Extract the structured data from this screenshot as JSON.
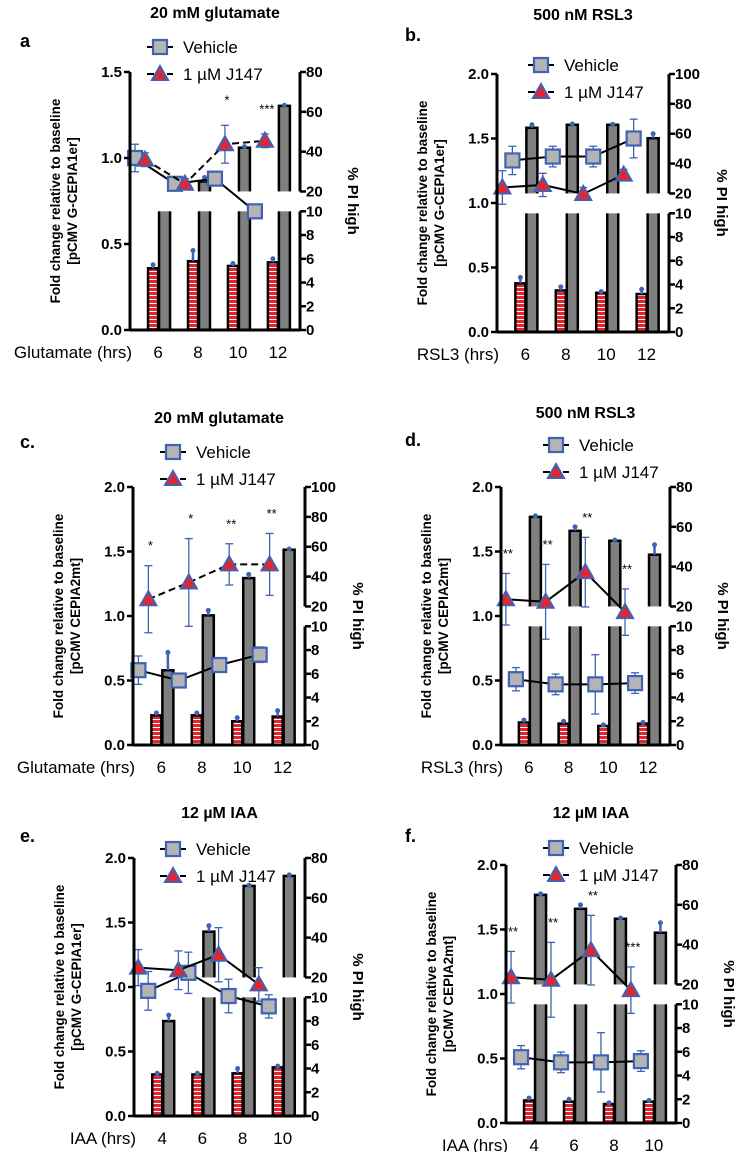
{
  "legend": {
    "vehicle": "Vehicle",
    "j147": "1 µM J147"
  },
  "colors": {
    "bar_gray": "#7f7f7f",
    "bar_red": "#e3262d",
    "marker_blue": "#3f62b4",
    "vehicle_fill": "#b4b4b4"
  },
  "right_ylabel": "% PI high",
  "ylabel_line1": "Fold change relative to baseline",
  "chart_data": [
    {
      "letter": "a",
      "title": "20 mM glutamate",
      "xlabel": "Glutamate (hrs)",
      "ylabel2": "[pCMV G-CEPIA1er]",
      "type": "bar+line",
      "categories": [
        "6",
        "8",
        "10",
        "12"
      ],
      "left_axis": {
        "max": 1.5,
        "ticks": [
          "0.0",
          "0.5",
          "1.0",
          "1.5"
        ]
      },
      "right_axis": {
        "lower_ticks": [
          "0",
          "2",
          "4",
          "6",
          "8",
          "10"
        ],
        "upper_ticks": [
          "20",
          "40",
          "60",
          "80"
        ],
        "upper_max": 80
      },
      "bar_break": true,
      "bars": {
        "j147": {
          "values": [
            5.2,
            5.8,
            5.4,
            5.7
          ],
          "errors": [
            0.3,
            0.9,
            0.2,
            0.3
          ]
        },
        "vehicle": {
          "values": [
            15,
            25,
            42,
            63
          ],
          "errors": [
            0,
            2,
            0.5,
            0.3
          ]
        }
      },
      "vehicle": {
        "values": [
          1.0,
          0.85,
          0.88,
          0.69
        ],
        "errors": [
          0.08,
          0,
          0,
          0
        ],
        "line": "solid"
      },
      "j147": {
        "values": [
          0.99,
          0.85,
          1.08,
          1.1
        ],
        "errors": [
          0.04,
          0.03,
          0.11,
          0.04
        ],
        "line": "dashed"
      },
      "stars": [
        "",
        "",
        "*",
        "***"
      ]
    },
    {
      "letter": "b.",
      "title": "500 nM RSL3",
      "xlabel": "RSL3 (hrs)",
      "ylabel2": "[pCMV G-CEPIA1er]",
      "type": "bar+line",
      "categories": [
        "6",
        "8",
        "10",
        "12"
      ],
      "left_axis": {
        "max": 2.0,
        "ticks": [
          "0.0",
          "0.5",
          "1.0",
          "1.5",
          "2.0"
        ]
      },
      "right_axis": {
        "lower_ticks": [
          "0",
          "2",
          "4",
          "6",
          "8",
          "10"
        ],
        "upper_ticks": [
          "20",
          "40",
          "60",
          "80",
          "100"
        ],
        "upper_max": 100
      },
      "bar_break": true,
      "bars": {
        "j147": {
          "values": [
            4.1,
            3.5,
            3.3,
            3.2
          ],
          "errors": [
            0.5,
            0.3,
            0.1,
            0.4
          ]
        },
        "vehicle": {
          "values": [
            64,
            66,
            66,
            57
          ],
          "errors": [
            2,
            0.5,
            0.3,
            3
          ]
        }
      },
      "vehicle": {
        "values": [
          1.33,
          1.36,
          1.36,
          1.5
        ],
        "errors": [
          0.11,
          0.08,
          0.08,
          0.15
        ],
        "line": "solid"
      },
      "j147": {
        "values": [
          1.12,
          1.14,
          1.07,
          1.22
        ],
        "errors": [
          0.13,
          0.09,
          0.05,
          0.04
        ],
        "line": "solid"
      },
      "stars": [
        "",
        "",
        "",
        ""
      ]
    },
    {
      "letter": "c.",
      "title": "20 mM glutamate",
      "xlabel": "Glutamate (hrs)",
      "ylabel2": "[pCMV CEPIA2mt]",
      "type": "bar+line",
      "categories": [
        "6",
        "8",
        "10",
        "12"
      ],
      "left_axis": {
        "max": 2.0,
        "ticks": [
          "0.0",
          "0.5",
          "1.0",
          "1.5",
          "2.0"
        ]
      },
      "right_axis": {
        "lower_ticks": [
          "0",
          "2",
          "4",
          "6",
          "8",
          "10"
        ],
        "upper_ticks": [
          "20",
          "40",
          "60",
          "80",
          "100"
        ],
        "upper_max": 100
      },
      "bar_break": false,
      "bars": {
        "j147": {
          "values": [
            2.5,
            2.5,
            2.0,
            2.4
          ],
          "errors": [
            0.2,
            0.2,
            0.3,
            0.5
          ]
        },
        "vehicle": {
          "values": [
            6.3,
            15.5,
            39,
            58
          ],
          "errors": [
            1.5,
            2.5,
            2.5,
            0.5
          ]
        }
      },
      "vehicle": {
        "values": [
          0.58,
          0.5,
          0.62,
          0.7
        ],
        "errors": [
          0.11,
          0,
          0.02,
          0.06
        ],
        "line": "solid"
      },
      "j147": {
        "values": [
          1.13,
          1.26,
          1.4,
          1.4
        ],
        "errors": [
          0.26,
          0.34,
          0.16,
          0.24
        ],
        "line": "dashed"
      },
      "stars": [
        "*",
        "*",
        "**",
        "**"
      ]
    },
    {
      "letter": "d.",
      "title": "500 nM RSL3",
      "xlabel": "RSL3 (hrs)",
      "ylabel2": "[pCMV CEPIA2mt]",
      "type": "bar+line",
      "categories": [
        "6",
        "8",
        "10",
        "12"
      ],
      "left_axis": {
        "max": 2.0,
        "ticks": [
          "0.0",
          "0.5",
          "1.0",
          "1.5",
          "2.0"
        ]
      },
      "right_axis": {
        "lower_ticks": [
          "0",
          "2",
          "4",
          "6",
          "8",
          "10"
        ],
        "upper_ticks": [
          "20",
          "40",
          "60",
          "80"
        ],
        "upper_max": 80
      },
      "bar_break": true,
      "bars": {
        "j147": {
          "values": [
            1.9,
            1.8,
            1.6,
            1.8
          ],
          "errors": [
            0.2,
            0.2,
            0.1,
            0.1
          ]
        },
        "vehicle": {
          "values": [
            65,
            58,
            53,
            46
          ],
          "errors": [
            0.5,
            2,
            0.3,
            5
          ]
        }
      },
      "vehicle": {
        "values": [
          0.51,
          0.47,
          0.47,
          0.48
        ],
        "errors": [
          0.09,
          0.08,
          0.23,
          0.08
        ],
        "line": "solid"
      },
      "j147": {
        "values": [
          1.13,
          1.11,
          1.34,
          1.03
        ],
        "errors": [
          0.2,
          0.29,
          0.27,
          0.18
        ],
        "line": "solid"
      },
      "stars": [
        "**",
        "**",
        "**",
        "**"
      ]
    },
    {
      "letter": "e.",
      "title": "12 µM IAA",
      "xlabel": "IAA (hrs)",
      "ylabel2": "[pCMV G-CEPIA1er]",
      "type": "bar+line",
      "categories": [
        "4",
        "6",
        "8",
        "10"
      ],
      "left_axis": {
        "max": 2.0,
        "ticks": [
          "0.0",
          "0.5",
          "1.0",
          "1.5",
          "2.0"
        ]
      },
      "right_axis": {
        "lower_ticks": [
          "0",
          "2",
          "4",
          "6",
          "8",
          "10"
        ],
        "upper_ticks": [
          "20",
          "40",
          "60",
          "80"
        ],
        "upper_max": 80
      },
      "bar_break": true,
      "bars": {
        "j147": {
          "values": [
            3.5,
            3.5,
            3.6,
            4.1
          ],
          "errors": [
            0.1,
            0.1,
            0.4,
            0.1
          ]
        },
        "vehicle": {
          "values": [
            8.0,
            43,
            66,
            71
          ],
          "errors": [
            0.5,
            3,
            0.3,
            0.5
          ]
        }
      },
      "vehicle": {
        "values": [
          0.97,
          1.11,
          0.93,
          0.85
        ],
        "errors": [
          0.15,
          0.16,
          0.13,
          0.09
        ],
        "line": "solid"
      },
      "j147": {
        "values": [
          1.15,
          1.13,
          1.25,
          1.02
        ],
        "errors": [
          0.14,
          0.15,
          0.21,
          0.13
        ],
        "line": "solid"
      },
      "stars": [
        "",
        "",
        "",
        ""
      ]
    },
    {
      "letter": "f.",
      "title": "12 µM IAA",
      "xlabel": "IAA (hrs)",
      "ylabel2": "[pCMV CEPIA2mt]",
      "type": "bar+line",
      "categories": [
        "4",
        "6",
        "8",
        "10"
      ],
      "left_axis": {
        "max": 2.0,
        "ticks": [
          "0.0",
          "0.5",
          "1.0",
          "1.5",
          "2.0"
        ]
      },
      "right_axis": {
        "lower_ticks": [
          "0",
          "2",
          "4",
          "6",
          "8",
          "10"
        ],
        "upper_ticks": [
          "20",
          "40",
          "60",
          "80"
        ],
        "upper_max": 80
      },
      "bar_break": true,
      "bars": {
        "j147": {
          "values": [
            1.9,
            1.8,
            1.6,
            1.8
          ],
          "errors": [
            0.2,
            0.2,
            0.1,
            0.1
          ]
        },
        "vehicle": {
          "values": [
            65,
            58,
            53,
            46
          ],
          "errors": [
            0.5,
            2,
            0.3,
            5
          ]
        }
      },
      "vehicle": {
        "values": [
          0.51,
          0.47,
          0.47,
          0.48
        ],
        "errors": [
          0.09,
          0.08,
          0.23,
          0.08
        ],
        "line": "solid"
      },
      "j147": {
        "values": [
          1.13,
          1.11,
          1.34,
          1.03
        ],
        "errors": [
          0.2,
          0.29,
          0.27,
          0.18
        ],
        "line": "solid"
      },
      "stars": [
        "**",
        "**",
        "**",
        "***"
      ]
    }
  ]
}
